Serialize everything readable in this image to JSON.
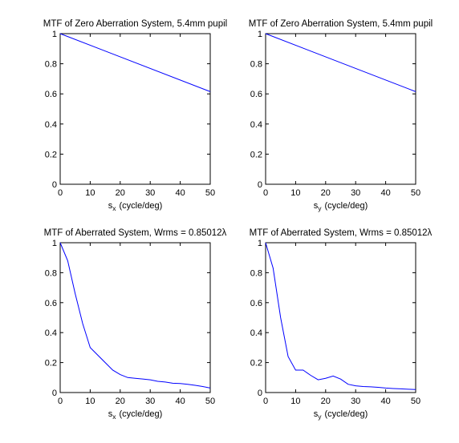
{
  "chart_data": [
    {
      "type": "line",
      "title": "MTF of Zero Aberration System, 5.4mm pupil",
      "xlabel": "s",
      "xlabel_sub": "x",
      "xlabel_unit": "(cycle/deg)",
      "xlim": [
        0,
        50
      ],
      "ylim": [
        0,
        1
      ],
      "xticks": [
        "0",
        "10",
        "20",
        "30",
        "40",
        "50"
      ],
      "yticks": [
        "0",
        "0.2",
        "0.4",
        "0.6",
        "0.8",
        "1"
      ],
      "grid": false,
      "series": [
        {
          "color": "#0000ff",
          "x": [
            0,
            50
          ],
          "y": [
            1.0,
            0.615
          ]
        }
      ]
    },
    {
      "type": "line",
      "title": "MTF of Zero Aberration System, 5.4mm pupil",
      "xlabel": "s",
      "xlabel_sub": "y",
      "xlabel_unit": "(cycle/deg)",
      "xlim": [
        0,
        50
      ],
      "ylim": [
        0,
        1
      ],
      "xticks": [
        "0",
        "10",
        "20",
        "30",
        "40",
        "50"
      ],
      "yticks": [
        "0",
        "0.2",
        "0.4",
        "0.6",
        "0.8",
        "1"
      ],
      "grid": false,
      "series": [
        {
          "color": "#0000ff",
          "x": [
            0,
            50
          ],
          "y": [
            1.0,
            0.615
          ]
        }
      ]
    },
    {
      "type": "line",
      "title": "MTF of Aberrated System, Wrms = 0.85012λ",
      "xlabel": "s",
      "xlabel_sub": "x",
      "xlabel_unit": "(cycle/deg)",
      "xlim": [
        0,
        50
      ],
      "ylim": [
        0,
        1
      ],
      "xticks": [
        "0",
        "10",
        "20",
        "30",
        "40",
        "50"
      ],
      "yticks": [
        "0",
        "0.2",
        "0.4",
        "0.6",
        "0.8",
        "1"
      ],
      "grid": false,
      "series": [
        {
          "color": "#0000ff",
          "x": [
            0,
            2.5,
            5,
            7.5,
            10,
            12.5,
            15,
            17.5,
            20,
            22.5,
            25,
            27.5,
            30,
            32.5,
            35,
            37.5,
            40,
            42.5,
            45,
            47.5,
            50
          ],
          "y": [
            1.0,
            0.88,
            0.66,
            0.46,
            0.3,
            0.25,
            0.2,
            0.15,
            0.12,
            0.1,
            0.095,
            0.09,
            0.085,
            0.075,
            0.07,
            0.062,
            0.06,
            0.055,
            0.048,
            0.04,
            0.03
          ]
        }
      ]
    },
    {
      "type": "line",
      "title": "MTF of Aberrated System, Wrms = 0.85012λ",
      "xlabel": "s",
      "xlabel_sub": "y",
      "xlabel_unit": "(cycle/deg)",
      "xlim": [
        0,
        50
      ],
      "ylim": [
        0,
        1
      ],
      "xticks": [
        "0",
        "10",
        "20",
        "30",
        "40",
        "50"
      ],
      "yticks": [
        "0",
        "0.2",
        "0.4",
        "0.6",
        "0.8",
        "1"
      ],
      "grid": false,
      "series": [
        {
          "color": "#0000ff",
          "x": [
            0,
            2.5,
            5,
            7.5,
            10,
            12.5,
            15,
            17.5,
            20,
            22.5,
            25,
            27.5,
            30,
            32.5,
            35,
            37.5,
            40,
            42.5,
            45,
            47.5,
            50
          ],
          "y": [
            1.0,
            0.83,
            0.5,
            0.24,
            0.15,
            0.15,
            0.115,
            0.085,
            0.095,
            0.11,
            0.09,
            0.055,
            0.045,
            0.04,
            0.038,
            0.035,
            0.03,
            0.027,
            0.025,
            0.022,
            0.02
          ]
        }
      ]
    }
  ]
}
